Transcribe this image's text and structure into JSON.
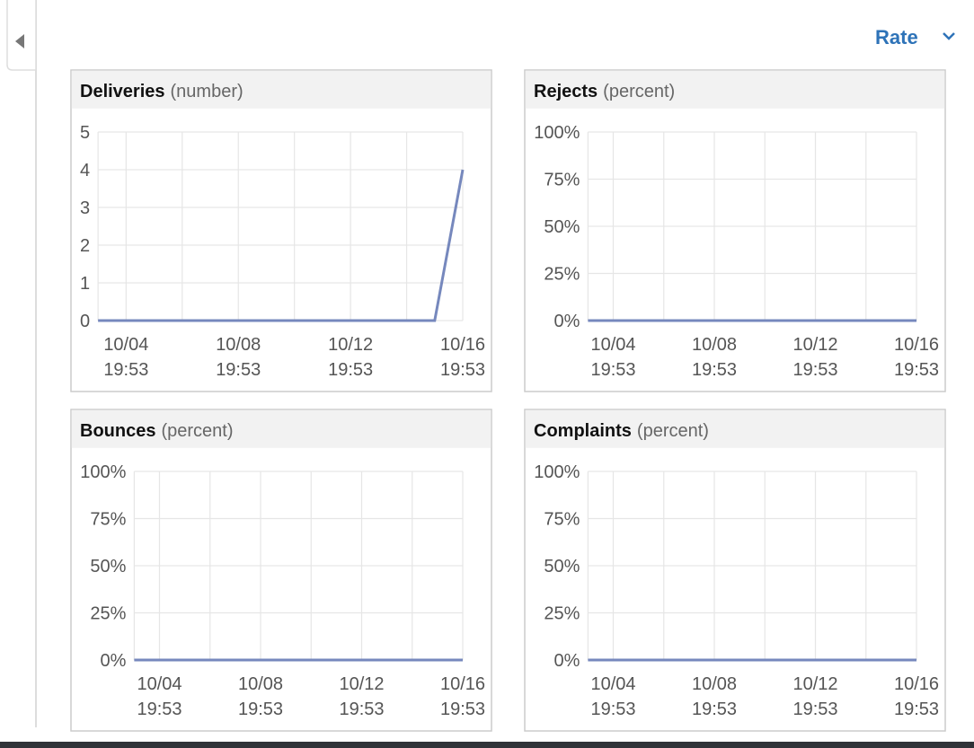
{
  "header": {
    "rate_label": "Rate"
  },
  "chart_data": [
    {
      "type": "line",
      "title": "Deliveries",
      "unit": "(number)",
      "x": [
        "10/03 19:53",
        "10/04 19:53",
        "10/05 19:53",
        "10/06 19:53",
        "10/07 19:53",
        "10/08 19:53",
        "10/09 19:53",
        "10/10 19:53",
        "10/11 19:53",
        "10/12 19:53",
        "10/13 19:53",
        "10/14 19:53",
        "10/15 19:53",
        "10/16 19:53"
      ],
      "values": [
        0,
        0,
        0,
        0,
        0,
        0,
        0,
        0,
        0,
        0,
        0,
        0,
        0,
        4
      ],
      "xticks": [
        "10/04 19:53",
        "10/08 19:53",
        "10/12 19:53",
        "10/16 19:53"
      ],
      "ylim": [
        0,
        5
      ],
      "yticks": [
        0,
        1,
        2,
        3,
        4,
        5
      ],
      "grid": true,
      "color": "#7688bd"
    },
    {
      "type": "line",
      "title": "Rejects",
      "unit": "(percent)",
      "x": [
        "10/03 19:53",
        "10/04 19:53",
        "10/05 19:53",
        "10/06 19:53",
        "10/07 19:53",
        "10/08 19:53",
        "10/09 19:53",
        "10/10 19:53",
        "10/11 19:53",
        "10/12 19:53",
        "10/13 19:53",
        "10/14 19:53",
        "10/15 19:53",
        "10/16 19:53"
      ],
      "values": [
        0,
        0,
        0,
        0,
        0,
        0,
        0,
        0,
        0,
        0,
        0,
        0,
        0,
        0
      ],
      "xticks": [
        "10/04 19:53",
        "10/08 19:53",
        "10/12 19:53",
        "10/16 19:53"
      ],
      "ylim": [
        0,
        100
      ],
      "yticks": [
        {
          "value": 0,
          "label": "0%"
        },
        {
          "value": 25,
          "label": "25%"
        },
        {
          "value": 50,
          "label": "50%"
        },
        {
          "value": 75,
          "label": "75%"
        },
        {
          "value": 100,
          "label": "100%"
        }
      ],
      "grid": true,
      "color": "#7688bd"
    },
    {
      "type": "line",
      "title": "Bounces",
      "unit": "(percent)",
      "x": [
        "10/03 19:53",
        "10/04 19:53",
        "10/05 19:53",
        "10/06 19:53",
        "10/07 19:53",
        "10/08 19:53",
        "10/09 19:53",
        "10/10 19:53",
        "10/11 19:53",
        "10/12 19:53",
        "10/13 19:53",
        "10/14 19:53",
        "10/15 19:53",
        "10/16 19:53"
      ],
      "values": [
        0,
        0,
        0,
        0,
        0,
        0,
        0,
        0,
        0,
        0,
        0,
        0,
        0,
        0
      ],
      "xticks": [
        "10/04 19:53",
        "10/08 19:53",
        "10/12 19:53",
        "10/16 19:53"
      ],
      "ylim": [
        0,
        100
      ],
      "yticks": [
        {
          "value": 0,
          "label": "0%"
        },
        {
          "value": 25,
          "label": "25%"
        },
        {
          "value": 50,
          "label": "50%"
        },
        {
          "value": 75,
          "label": "75%"
        },
        {
          "value": 100,
          "label": "100%"
        }
      ],
      "grid": true,
      "color": "#7688bd"
    },
    {
      "type": "line",
      "title": "Complaints",
      "unit": "(percent)",
      "x": [
        "10/03 19:53",
        "10/04 19:53",
        "10/05 19:53",
        "10/06 19:53",
        "10/07 19:53",
        "10/08 19:53",
        "10/09 19:53",
        "10/10 19:53",
        "10/11 19:53",
        "10/12 19:53",
        "10/13 19:53",
        "10/14 19:53",
        "10/15 19:53",
        "10/16 19:53"
      ],
      "values": [
        0,
        0,
        0,
        0,
        0,
        0,
        0,
        0,
        0,
        0,
        0,
        0,
        0,
        0
      ],
      "xticks": [
        "10/04 19:53",
        "10/08 19:53",
        "10/12 19:53",
        "10/16 19:53"
      ],
      "ylim": [
        0,
        100
      ],
      "yticks": [
        {
          "value": 0,
          "label": "0%"
        },
        {
          "value": 25,
          "label": "25%"
        },
        {
          "value": 50,
          "label": "50%"
        },
        {
          "value": 75,
          "label": "75%"
        },
        {
          "value": 100,
          "label": "100%"
        }
      ],
      "grid": true,
      "color": "#7688bd"
    }
  ]
}
